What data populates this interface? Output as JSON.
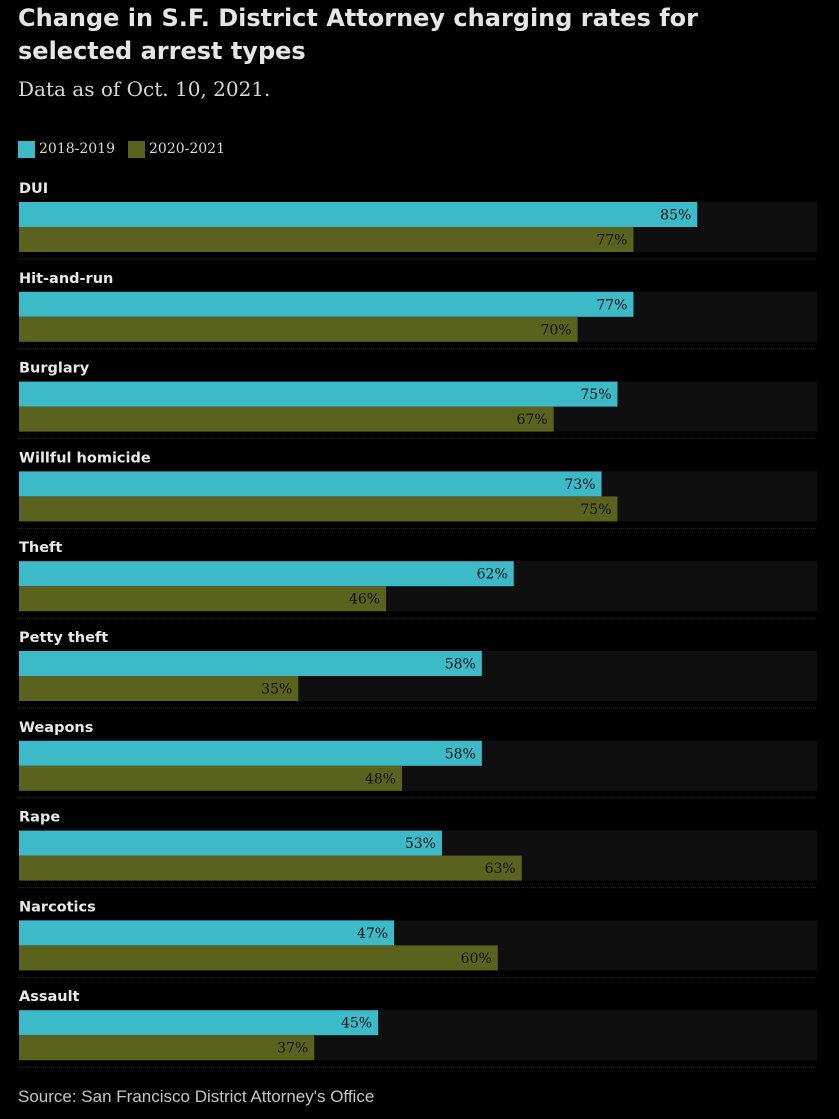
{
  "header": {
    "title": "Change in S.F. District Attorney charging rates for selected arrest types",
    "subtitle": "Data as of Oct. 10, 2021."
  },
  "legend": {
    "items": [
      {
        "label": "2018-2019",
        "color": "#3dbac8"
      },
      {
        "label": "2020-2021",
        "color": "#5b621e"
      }
    ]
  },
  "footer": {
    "source": "Source: San Francisco District Attorney's Office"
  },
  "colors": {
    "track": "#0f0f0f",
    "separator": "#2a2a2a",
    "label_text": "#e8e8e8",
    "value_text": "#111111"
  },
  "chart_data": {
    "type": "bar",
    "orientation": "horizontal",
    "title": "Change in S.F. District Attorney charging rates for selected arrest types",
    "subtitle": "Data as of Oct. 10, 2021.",
    "xlabel": "",
    "ylabel": "",
    "xlim": [
      0,
      100
    ],
    "unit": "%",
    "grid": false,
    "legend_position": "top-left",
    "categories": [
      "DUI",
      "Hit-and-run",
      "Burglary",
      "Willful homicide",
      "Theft",
      "Petty theft",
      "Weapons",
      "Rape",
      "Narcotics",
      "Assault"
    ],
    "series": [
      {
        "name": "2018-2019",
        "color": "#3dbac8",
        "values": [
          85,
          77,
          75,
          73,
          62,
          58,
          58,
          53,
          47,
          45
        ]
      },
      {
        "name": "2020-2021",
        "color": "#5b621e",
        "values": [
          77,
          70,
          67,
          75,
          46,
          35,
          48,
          63,
          60,
          37
        ]
      }
    ]
  }
}
